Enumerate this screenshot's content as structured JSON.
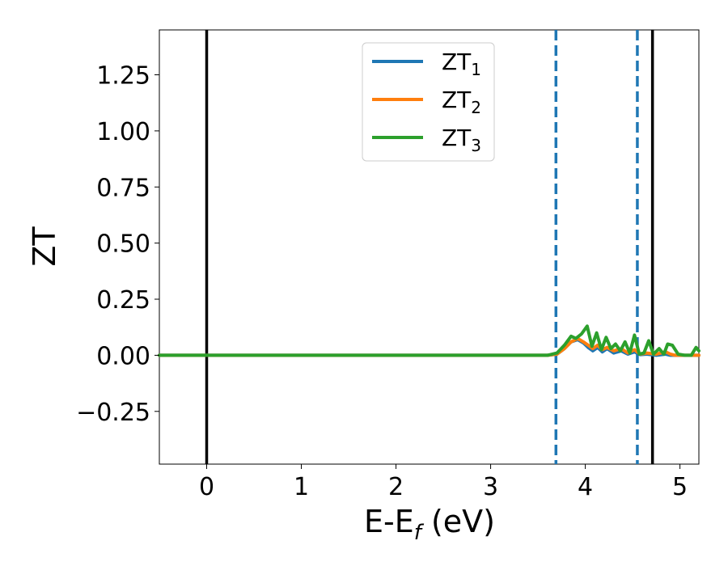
{
  "chart_data": {
    "type": "line",
    "xlabel": {
      "base": "E-E",
      "sub": "f",
      "suffix": " (eV)"
    },
    "ylabel": "ZT",
    "xlim": [
      -0.5,
      5.2
    ],
    "ylim": [
      -0.485,
      1.45
    ],
    "xticks": [
      0,
      1,
      2,
      3,
      4,
      5
    ],
    "xtick_labels": [
      "0",
      "1",
      "2",
      "3",
      "4",
      "5"
    ],
    "yticks": [
      -0.25,
      0,
      0.25,
      0.5,
      0.75,
      1.0,
      1.25
    ],
    "ytick_labels": [
      "−0.25",
      "0.00",
      "0.25",
      "0.50",
      "0.75",
      "1.00",
      "1.25"
    ],
    "grid": false,
    "legend_position": "top-center",
    "vlines": [
      {
        "x": 0.0,
        "style": "solid",
        "color": "#000000"
      },
      {
        "x": 4.71,
        "style": "solid",
        "color": "#000000"
      },
      {
        "x": 3.69,
        "style": "dashed",
        "color": "#1f77b4"
      },
      {
        "x": 4.55,
        "style": "dashed",
        "color": "#1f77b4"
      }
    ],
    "series": [
      {
        "name": "ZT1",
        "legend_base": "ZT",
        "legend_sub": "1",
        "color": "#1f77b4",
        "x": [
          -0.5,
          3.6,
          3.7,
          3.78,
          3.85,
          3.92,
          3.98,
          4.03,
          4.08,
          4.13,
          4.18,
          4.23,
          4.3,
          4.38,
          4.45,
          4.52,
          4.58,
          4.65,
          4.75,
          4.85,
          4.9,
          4.95,
          5.05,
          5.15,
          5.2
        ],
        "y": [
          0,
          0,
          0.005,
          0.03,
          0.06,
          0.07,
          0.055,
          0.035,
          0.02,
          0.035,
          0.015,
          0.03,
          0.01,
          0.02,
          0.005,
          0.015,
          0.003,
          0.005,
          0,
          0.005,
          0,
          0,
          0,
          0,
          0
        ]
      },
      {
        "name": "ZT2",
        "legend_base": "ZT",
        "legend_sub": "2",
        "color": "#ff7f0e",
        "x": [
          -0.5,
          3.6,
          3.7,
          3.78,
          3.85,
          3.92,
          3.98,
          4.03,
          4.08,
          4.13,
          4.18,
          4.23,
          4.3,
          4.38,
          4.45,
          4.52,
          4.58,
          4.65,
          4.75,
          4.85,
          4.9,
          4.95,
          5.05,
          5.15,
          5.2
        ],
        "y": [
          0,
          0,
          0.005,
          0.03,
          0.06,
          0.075,
          0.06,
          0.045,
          0.03,
          0.045,
          0.025,
          0.035,
          0.02,
          0.03,
          0.01,
          0.025,
          0.005,
          0.01,
          0.005,
          0.015,
          0.005,
          0,
          0,
          0,
          0
        ]
      },
      {
        "name": "ZT3",
        "legend_base": "ZT",
        "legend_sub": "3",
        "color": "#2ca02c",
        "x": [
          -0.5,
          3.6,
          3.7,
          3.78,
          3.85,
          3.9,
          3.96,
          4.02,
          4.07,
          4.12,
          4.17,
          4.22,
          4.27,
          4.32,
          4.37,
          4.42,
          4.47,
          4.52,
          4.57,
          4.62,
          4.67,
          4.72,
          4.78,
          4.83,
          4.87,
          4.92,
          4.98,
          5.05,
          5.12,
          5.17,
          5.2
        ],
        "y": [
          0,
          0,
          0.01,
          0.045,
          0.085,
          0.075,
          0.095,
          0.13,
          0.04,
          0.1,
          0.025,
          0.08,
          0.03,
          0.05,
          0.02,
          0.06,
          0.01,
          0.09,
          0.005,
          0.01,
          0.065,
          0.005,
          0.03,
          0.005,
          0.05,
          0.045,
          0.005,
          0,
          0,
          0.035,
          0.02
        ]
      }
    ]
  }
}
